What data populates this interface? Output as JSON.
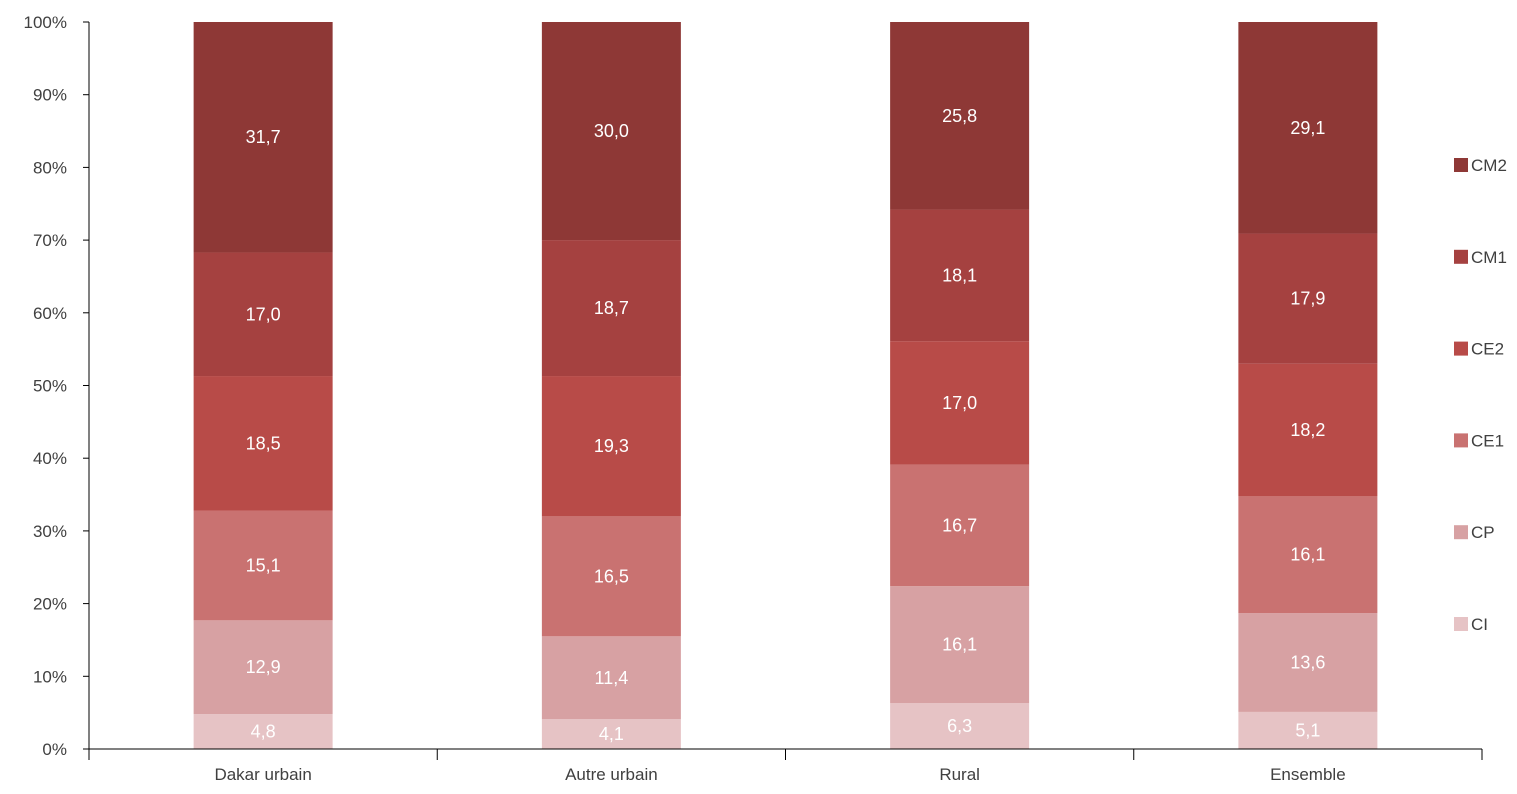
{
  "chart_data": {
    "type": "bar",
    "stacked": true,
    "percent": true,
    "categories": [
      "Dakar urbain",
      "Autre urbain",
      "Rural",
      "Ensemble"
    ],
    "series": [
      {
        "name": "CI",
        "color": "#e6c3c5",
        "values": [
          4.8,
          4.1,
          6.3,
          5.1
        ]
      },
      {
        "name": "CP",
        "color": "#d7a1a3",
        "values": [
          12.9,
          11.4,
          16.1,
          13.6
        ]
      },
      {
        "name": "CE1",
        "color": "#c97271",
        "values": [
          15.1,
          16.5,
          16.7,
          16.1
        ]
      },
      {
        "name": "CE2",
        "color": "#b84b48",
        "values": [
          18.5,
          19.3,
          17.0,
          18.2
        ]
      },
      {
        "name": "CM1",
        "color": "#a54140",
        "values": [
          17.0,
          18.7,
          18.1,
          17.9
        ]
      },
      {
        "name": "CM2",
        "color": "#8e3836",
        "values": [
          31.7,
          30.0,
          25.8,
          29.1
        ]
      }
    ],
    "data_labels": [
      [
        "4,8",
        "4,1",
        "6,3",
        "5,1"
      ],
      [
        "12,9",
        "11,4",
        "16,1",
        "13,6"
      ],
      [
        "15,1",
        "16,5",
        "16,7",
        "16,1"
      ],
      [
        "18,5",
        "19,3",
        "17,0",
        "18,2"
      ],
      [
        "17,0",
        "18,7",
        "18,1",
        "17,9"
      ],
      [
        "31,7",
        "30,0",
        "25,8",
        "29,1"
      ]
    ],
    "y_ticks": [
      "0%",
      "10%",
      "20%",
      "30%",
      "40%",
      "50%",
      "60%",
      "70%",
      "80%",
      "90%",
      "100%"
    ],
    "ylim": [
      0,
      100
    ],
    "grid": false,
    "legend_position": "right"
  }
}
